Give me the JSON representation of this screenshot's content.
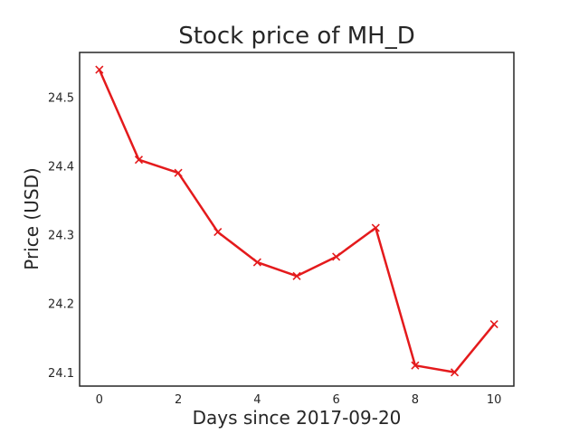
{
  "chart_data": {
    "type": "line",
    "title": "Stock price of MH_D",
    "xlabel": "Days since 2017-09-20",
    "ylabel": "Price (USD)",
    "x": [
      0,
      1,
      2,
      3,
      4,
      5,
      6,
      7,
      8,
      9,
      10
    ],
    "series": [
      {
        "values": [
          24.54,
          24.409,
          24.39,
          24.304,
          24.26,
          24.24,
          24.268,
          24.31,
          24.11,
          24.1,
          24.17
        ],
        "color": "#e41a1c",
        "marker": "x"
      }
    ],
    "xlim": [
      -0.5,
      10.5
    ],
    "ylim": [
      24.08,
      24.565
    ],
    "xticks": [
      0,
      2,
      4,
      6,
      8,
      10
    ],
    "yticks": [
      24.1,
      24.2,
      24.3,
      24.4,
      24.5
    ],
    "ytick_labels": [
      "24.1",
      "24.2",
      "24.3",
      "24.4",
      "24.5"
    ],
    "grid": false,
    "legend": "none"
  }
}
